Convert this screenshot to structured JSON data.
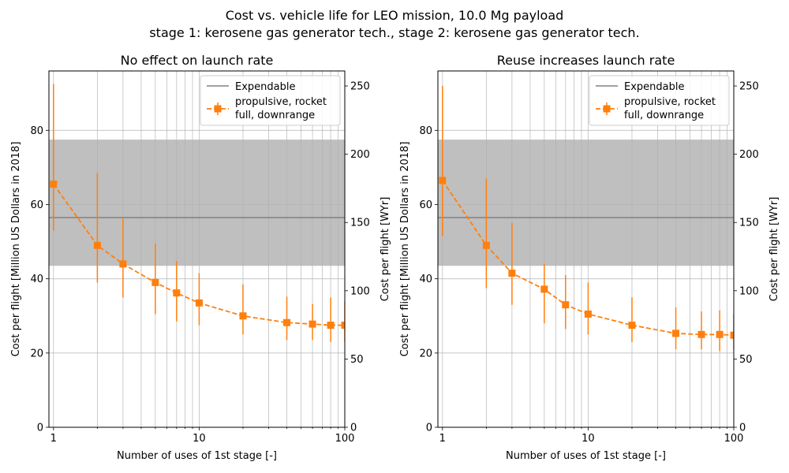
{
  "figure": {
    "title_line1": "Cost vs. vehicle life for LEO mission, 10.0 Mg payload",
    "title_line2": "stage 1: kerosene gas generator tech., stage 2: kerosene gas generator tech."
  },
  "colors": {
    "series": "#ff7f0e",
    "expendable_line": "#808080",
    "expendable_band": "#bfbfbf",
    "grid": "#b0b0b0"
  },
  "chart_data": [
    {
      "type": "line",
      "title": "No effect on launch rate",
      "xlabel": "Number of uses of 1st stage [-]",
      "ylabel": "Cost per flight [Million US Dollars in 2018]",
      "ylabel_right": "Cost per flight [WYr]",
      "xscale": "log",
      "xlim": [
        0.93,
        100
      ],
      "ylim": [
        0,
        96
      ],
      "ylim_right": [
        0,
        261
      ],
      "xticks": [
        1,
        10,
        100
      ],
      "yticks": [
        0,
        20,
        40,
        60,
        80
      ],
      "yticks_right": [
        0,
        50,
        100,
        150,
        200,
        250
      ],
      "grid": true,
      "legend_position": "top-right",
      "legend": [
        "Expendable",
        "propulsive, rocket\nfull, downrange"
      ],
      "expendable": {
        "name": "Expendable",
        "value": 56.5,
        "band": [
          43.5,
          77.5
        ]
      },
      "series": [
        {
          "name": "propulsive, rocket\nfull, downrange",
          "x": [
            1,
            2,
            3,
            5,
            7,
            10,
            20,
            40,
            60,
            80,
            100
          ],
          "y": [
            65.5,
            49,
            44,
            39,
            36.2,
            33.5,
            30,
            28.2,
            27.8,
            27.5,
            27.5
          ],
          "err_low": [
            53,
            39,
            35,
            30.5,
            28.5,
            27.5,
            25,
            23.5,
            23.5,
            23,
            23
          ],
          "err_high": [
            92.5,
            68.5,
            56.5,
            49.5,
            44.8,
            41.5,
            38.5,
            35.2,
            33.2,
            35,
            34
          ]
        }
      ]
    },
    {
      "type": "line",
      "title": "Reuse increases launch rate",
      "xlabel": "Number of uses of 1st stage [-]",
      "ylabel": "Cost per flight [Million US Dollars in 2018]",
      "ylabel_right": "Cost per flight [WYr]",
      "xscale": "log",
      "xlim": [
        0.93,
        100
      ],
      "ylim": [
        0,
        96
      ],
      "ylim_right": [
        0,
        261
      ],
      "xticks": [
        1,
        10,
        100
      ],
      "yticks": [
        0,
        20,
        40,
        60,
        80
      ],
      "yticks_right": [
        0,
        50,
        100,
        150,
        200,
        250
      ],
      "grid": true,
      "legend_position": "top-right",
      "legend": [
        "Expendable",
        "propulsive, rocket\nfull, downrange"
      ],
      "expendable": {
        "name": "Expendable",
        "value": 56.5,
        "band": [
          43.5,
          77.5
        ]
      },
      "series": [
        {
          "name": "propulsive, rocket\nfull, downrange",
          "x": [
            1,
            2,
            3,
            5,
            7,
            10,
            20,
            40,
            60,
            80,
            100
          ],
          "y": [
            66.5,
            49,
            41.5,
            37.2,
            33,
            30.5,
            27.5,
            25.3,
            25,
            25,
            24.8
          ],
          "err_low": [
            51.5,
            37.5,
            33,
            28,
            26.5,
            25,
            23,
            21,
            21,
            20.5,
            21
          ],
          "err_high": [
            92,
            67,
            55,
            44,
            41,
            39,
            35,
            32.3,
            31.2,
            31.5,
            30.5
          ]
        }
      ]
    }
  ]
}
